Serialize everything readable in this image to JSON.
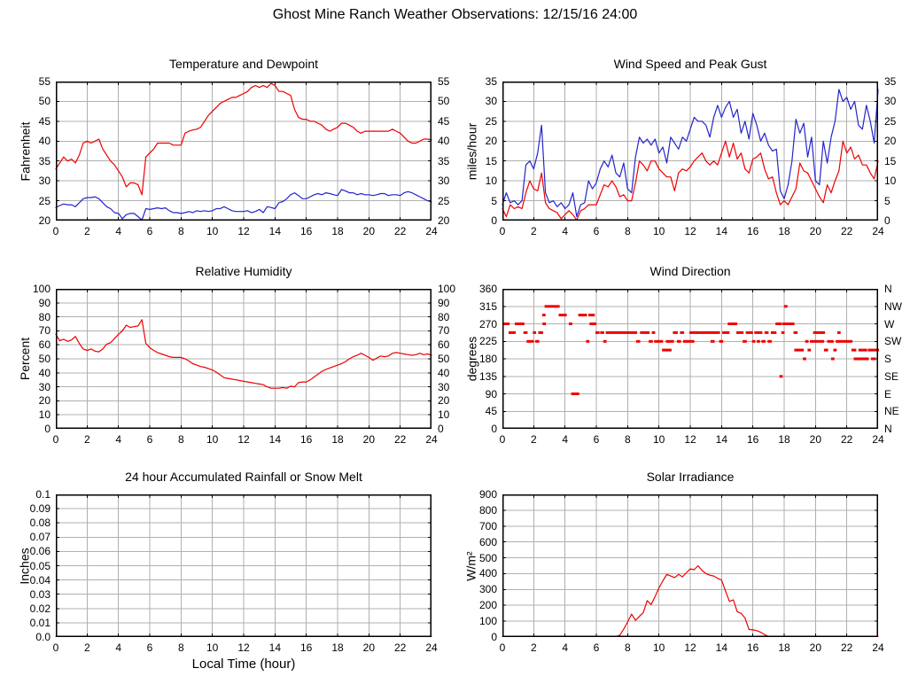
{
  "page": {
    "title": "Ghost Mine Ranch Weather Observations: 12/15/16 24:00",
    "background": "#ffffff"
  },
  "colors": {
    "series_red": "#ee0000",
    "series_blue": "#2424cc",
    "grid": "#b0b0b0",
    "axis": "#000000",
    "text": "#000000"
  },
  "chart_data": [
    {
      "id": "temperature-dewpoint",
      "type": "line",
      "row": 0,
      "col": 0,
      "title": "Temperature and Dewpoint",
      "ylabel": "Fahrenheit",
      "xlim": [
        0,
        24
      ],
      "xtick": 2,
      "ylim": [
        20,
        55
      ],
      "ytick": 5,
      "right_labels": "numeric",
      "grid": true,
      "x_start": 0,
      "dt": 0.25,
      "series": [
        {
          "name": "temperature",
          "color": "#ee0000",
          "values": [
            33,
            34.5,
            36,
            35,
            35.5,
            34.5,
            36.5,
            39.5,
            40,
            39.5,
            40,
            40.5,
            38,
            36.5,
            35,
            34,
            32.5,
            31,
            28.5,
            29.5,
            29.5,
            29,
            26.5,
            36,
            37,
            38,
            39.5,
            39.5,
            39.5,
            39.5,
            39,
            39,
            39,
            42,
            42.5,
            42.8,
            43,
            43.5,
            45,
            46.5,
            47.5,
            48.5,
            49.5,
            50,
            50.5,
            51,
            51,
            51.5,
            52,
            52.5,
            53.5,
            54,
            53.5,
            54,
            53.5,
            54.5,
            54,
            52.5,
            52.5,
            52,
            51.5,
            48,
            46,
            45.5,
            45.5,
            45,
            45,
            44.5,
            44,
            43,
            42.5,
            43,
            43.5,
            44.5,
            44.5,
            44,
            43.5,
            42.5,
            42,
            42.5,
            42.5,
            42.5,
            42.5,
            42.5,
            42.5,
            42.5,
            43,
            42.5,
            42,
            41,
            40,
            39.5,
            39.5,
            40,
            40.5,
            40.5,
            40.3
          ]
        },
        {
          "name": "dewpoint",
          "color": "#2424cc",
          "values": [
            23.3,
            23.8,
            24.2,
            24,
            24,
            23.5,
            24.5,
            25.5,
            25.8,
            25.8,
            26,
            25.5,
            24.5,
            23.5,
            23,
            22,
            21.8,
            20.5,
            21.5,
            21.8,
            21.8,
            21,
            20,
            23,
            22.8,
            23,
            23.2,
            23,
            23.2,
            22.5,
            22,
            22,
            21.8,
            22,
            22.3,
            22,
            22.5,
            22.3,
            22.5,
            22.3,
            22.5,
            23,
            23,
            23.5,
            23,
            22.5,
            22.3,
            22.3,
            22.3,
            22.5,
            22,
            22.3,
            22.8,
            22,
            23.5,
            23.3,
            23,
            24.5,
            24.8,
            25.5,
            26.5,
            27,
            26.3,
            25.5,
            25.5,
            26,
            26.5,
            26.8,
            26.5,
            27,
            26.8,
            26.5,
            26.3,
            27.8,
            27.5,
            27,
            27,
            26.5,
            26.8,
            26.5,
            26.5,
            26.3,
            26.5,
            26.8,
            26.8,
            26.3,
            26.5,
            26.5,
            26.3,
            27,
            27.3,
            27,
            26.5,
            26,
            25.5,
            25,
            24.7
          ]
        }
      ]
    },
    {
      "id": "wind-speed-gust",
      "type": "line",
      "row": 0,
      "col": 1,
      "title": "Wind Speed and Peak Gust",
      "ylabel": "miles/hour",
      "xlim": [
        0,
        24
      ],
      "xtick": 2,
      "ylim": [
        0,
        35
      ],
      "ytick": 5,
      "right_labels": "numeric",
      "grid": true,
      "x_start": 0,
      "dt": 0.25,
      "series": [
        {
          "name": "peak-gust",
          "color": "#2424cc",
          "values": [
            4,
            7,
            4.5,
            5,
            4,
            5,
            14,
            15,
            13,
            17,
            24,
            7,
            4.5,
            5,
            3.5,
            4.5,
            3,
            4,
            7,
            1,
            4,
            4.5,
            10,
            8,
            9.5,
            13,
            15,
            13.5,
            16.5,
            12,
            11,
            14.5,
            8,
            7,
            16,
            21,
            19.5,
            20.5,
            19,
            20.5,
            17,
            18.5,
            14.5,
            21,
            19.5,
            18,
            21,
            20,
            23,
            26,
            25,
            25,
            24,
            21,
            26,
            29,
            26,
            28.5,
            30,
            26,
            28,
            22,
            25,
            20.5,
            27,
            24,
            20,
            22,
            19,
            17.5,
            18,
            7.5,
            5.5,
            9,
            15,
            25.5,
            22,
            24.5,
            16,
            21,
            10,
            9,
            20,
            14.5,
            21,
            25,
            33,
            30,
            31,
            28,
            30,
            24,
            23,
            29,
            25,
            19.5,
            33
          ]
        },
        {
          "name": "wind-speed",
          "color": "#ee0000",
          "values": [
            3,
            1,
            4,
            3,
            3.5,
            3,
            7,
            10,
            8,
            7.5,
            12,
            4.5,
            3,
            2.5,
            2,
            0.5,
            1.5,
            2.5,
            1.5,
            0,
            2.5,
            3,
            4,
            4,
            4,
            6.5,
            9,
            8.5,
            10,
            8.5,
            6,
            6.5,
            5,
            5,
            9.5,
            15,
            14,
            12.5,
            15,
            15,
            13,
            12,
            11,
            11,
            7.5,
            12,
            13,
            12.5,
            13.5,
            15,
            16,
            17,
            15,
            14,
            15,
            14,
            17,
            20,
            16,
            19.5,
            15.5,
            17,
            13,
            12,
            15.5,
            16,
            17,
            13,
            10.5,
            11,
            7,
            4,
            5,
            4,
            6,
            8,
            14.5,
            12.5,
            12,
            10,
            8,
            6,
            4.5,
            9,
            7,
            10,
            12.5,
            20,
            17,
            18.5,
            15.5,
            16.5,
            14,
            14,
            12,
            10.5,
            15
          ]
        }
      ]
    },
    {
      "id": "relative-humidity",
      "type": "line",
      "row": 1,
      "col": 0,
      "title": "Relative Humidity",
      "ylabel": "Percent",
      "xlim": [
        0,
        24
      ],
      "xtick": 2,
      "ylim": [
        0,
        100
      ],
      "ytick": 10,
      "right_labels": "numeric",
      "grid": true,
      "x_start": 0,
      "dt": 0.25,
      "series": [
        {
          "name": "humidity",
          "color": "#ee0000",
          "values": [
            67.5,
            63,
            64,
            62.5,
            63.5,
            66,
            61,
            57,
            56,
            57,
            55.5,
            55,
            57,
            60.5,
            61.5,
            64.5,
            67.5,
            70,
            74,
            72.5,
            73,
            73.5,
            78,
            61,
            58,
            56,
            54.5,
            53.5,
            52.5,
            51.5,
            51,
            51,
            51,
            50,
            48.5,
            46.5,
            45.5,
            44.5,
            44,
            43,
            42,
            40.5,
            38.5,
            36.5,
            36,
            35.5,
            35,
            34.5,
            34,
            33.5,
            33,
            32.5,
            32,
            31.5,
            30,
            29,
            29,
            29,
            29.5,
            29,
            30.5,
            30,
            33,
            33.5,
            33.5,
            35,
            37,
            39,
            41,
            42.5,
            43.5,
            44.5,
            45.5,
            46.5,
            48,
            50,
            51.5,
            52.5,
            54,
            52.5,
            51,
            49,
            50.5,
            52,
            51.5,
            52,
            54,
            54.5,
            54,
            53.5,
            53,
            52.5,
            53,
            54,
            53,
            53.5,
            52.5
          ]
        }
      ]
    },
    {
      "id": "wind-direction",
      "type": "scatter",
      "row": 1,
      "col": 1,
      "title": "Wind Direction",
      "ylabel": "degrees",
      "xlim": [
        0,
        24
      ],
      "xtick": 2,
      "ylim": [
        0,
        360
      ],
      "ytick": 45,
      "right_labels": "compass",
      "compass": [
        "N",
        "NE",
        "E",
        "SE",
        "S",
        "SW",
        "W",
        "NW",
        "N"
      ],
      "grid": true,
      "point_color": "#ee0000",
      "segments": [
        [
          0.05,
          0.4,
          270
        ],
        [
          0.45,
          0.8,
          247.5
        ],
        [
          0.85,
          1.35,
          270
        ],
        [
          1.4,
          1.55,
          247.5
        ],
        [
          1.6,
          1.95,
          225
        ],
        [
          2.0,
          2.1,
          247.5
        ],
        [
          2.15,
          2.3,
          225
        ],
        [
          2.35,
          2.55,
          247.5
        ],
        [
          2.6,
          2.7,
          292.5
        ],
        [
          2.62,
          2.72,
          270
        ],
        [
          2.75,
          3.6,
          315
        ],
        [
          3.65,
          4.05,
          292.5
        ],
        [
          4.3,
          4.4,
          270
        ],
        [
          4.45,
          4.85,
          90
        ],
        [
          4.9,
          5.35,
          292.5
        ],
        [
          5.4,
          5.5,
          225
        ],
        [
          5.55,
          5.85,
          292.5
        ],
        [
          5.62,
          5.95,
          270
        ],
        [
          6.0,
          6.15,
          247.5
        ],
        [
          6.3,
          6.45,
          247.5
        ],
        [
          6.5,
          6.6,
          225
        ],
        [
          6.65,
          8.55,
          247.5
        ],
        [
          8.6,
          8.75,
          225
        ],
        [
          8.85,
          9.35,
          247.5
        ],
        [
          9.4,
          9.55,
          225
        ],
        [
          9.6,
          9.7,
          247.5
        ],
        [
          9.75,
          10.2,
          225
        ],
        [
          10.25,
          10.45,
          202.5
        ],
        [
          10.55,
          10.75,
          202.5
        ],
        [
          10.5,
          10.9,
          225
        ],
        [
          10.95,
          11.15,
          247.5
        ],
        [
          11.2,
          11.35,
          225
        ],
        [
          11.4,
          11.55,
          247.5
        ],
        [
          11.6,
          11.75,
          225
        ],
        [
          11.8,
          12.2,
          225
        ],
        [
          12.0,
          12.15,
          247.5
        ],
        [
          12.25,
          12.4,
          247.5
        ],
        [
          12.45,
          13.85,
          247.5
        ],
        [
          13.35,
          13.5,
          225
        ],
        [
          13.9,
          14.05,
          225
        ],
        [
          14.1,
          14.45,
          247.5
        ],
        [
          14.45,
          14.95,
          270
        ],
        [
          15.0,
          15.35,
          247.5
        ],
        [
          15.4,
          15.55,
          225
        ],
        [
          15.6,
          15.95,
          247.5
        ],
        [
          16.0,
          16.1,
          225
        ],
        [
          16.15,
          16.55,
          247.5
        ],
        [
          16.3,
          16.4,
          225
        ],
        [
          16.6,
          16.75,
          225
        ],
        [
          16.8,
          16.95,
          247.5
        ],
        [
          17.0,
          17.15,
          225
        ],
        [
          17.2,
          17.45,
          247.5
        ],
        [
          17.5,
          17.8,
          270
        ],
        [
          17.75,
          17.85,
          135
        ],
        [
          17.87,
          17.97,
          247.5
        ],
        [
          18.05,
          18.15,
          315
        ],
        [
          17.95,
          18.6,
          270
        ],
        [
          18.65,
          18.8,
          247.5
        ],
        [
          18.7,
          18.85,
          202.5
        ],
        [
          18.9,
          19.2,
          202.5
        ],
        [
          19.25,
          19.35,
          180
        ],
        [
          19.4,
          19.5,
          225
        ],
        [
          19.55,
          19.65,
          202.5
        ],
        [
          19.7,
          20.5,
          225
        ],
        [
          19.9,
          20.0,
          247.5
        ],
        [
          20.1,
          20.2,
          247.5
        ],
        [
          20.3,
          20.4,
          247.5
        ],
        [
          20.45,
          20.55,
          247.5
        ],
        [
          20.6,
          20.75,
          202.5
        ],
        [
          20.8,
          21.1,
          225
        ],
        [
          21.05,
          21.15,
          180
        ],
        [
          21.2,
          21.3,
          202.5
        ],
        [
          21.35,
          21.5,
          225
        ],
        [
          21.45,
          21.55,
          247.5
        ],
        [
          21.6,
          22.3,
          225
        ],
        [
          22.35,
          22.55,
          202.5
        ],
        [
          22.5,
          22.75,
          180
        ],
        [
          22.8,
          23.0,
          202.5
        ],
        [
          22.85,
          23.05,
          180
        ],
        [
          23.1,
          23.25,
          202.5
        ],
        [
          23.15,
          23.35,
          180
        ],
        [
          23.4,
          23.55,
          202.5
        ],
        [
          23.6,
          23.8,
          180
        ],
        [
          23.65,
          24.0,
          202.5
        ]
      ]
    },
    {
      "id": "rainfall",
      "type": "line",
      "row": 2,
      "col": 0,
      "title": "24 hour Accumulated Rainfall or Snow Melt",
      "ylabel": "Inches",
      "xlabel": "Local Time (hour)",
      "xlim": [
        0,
        24
      ],
      "xtick": 2,
      "ylim": [
        0,
        0.1
      ],
      "ytick_labels": [
        "0.0",
        "0.01",
        "0.02",
        "0.03",
        "0.04",
        "0.05",
        "0.06",
        "0.07",
        "0.08",
        "0.09",
        "0.1"
      ],
      "right_labels": "none",
      "grid": true,
      "series": [
        {
          "name": "rainfall",
          "color": "#ee0000",
          "x": [
            0,
            24
          ],
          "values": [
            0,
            0
          ]
        }
      ]
    },
    {
      "id": "solar-irradiance",
      "type": "line",
      "row": 2,
      "col": 1,
      "title": "Solar Irradiance",
      "ylabel": "W/m²",
      "xlim": [
        0,
        24
      ],
      "xtick": 2,
      "ylim": [
        0,
        900
      ],
      "ytick": 100,
      "right_labels": "none",
      "grid": true,
      "x_start": 0,
      "dt": 0.25,
      "series": [
        {
          "name": "solar",
          "color": "#ee0000",
          "values": [
            0,
            0,
            0,
            0,
            0,
            0,
            0,
            0,
            0,
            0,
            0,
            0,
            0,
            0,
            0,
            0,
            0,
            0,
            0,
            0,
            0,
            0,
            0,
            0,
            0,
            0,
            0,
            0,
            0,
            0,
            12,
            50,
            95,
            145,
            105,
            130,
            155,
            230,
            205,
            255,
            310,
            355,
            395,
            385,
            375,
            395,
            380,
            405,
            430,
            425,
            450,
            420,
            400,
            390,
            385,
            370,
            360,
            290,
            225,
            235,
            160,
            150,
            120,
            48,
            45,
            40,
            30,
            15,
            3,
            0,
            0,
            0,
            0,
            0,
            0,
            0,
            0,
            0,
            0,
            0,
            0,
            0,
            0,
            0,
            0,
            0,
            0,
            0,
            0,
            0,
            0,
            0,
            0,
            0,
            0,
            0,
            0
          ]
        }
      ]
    }
  ]
}
